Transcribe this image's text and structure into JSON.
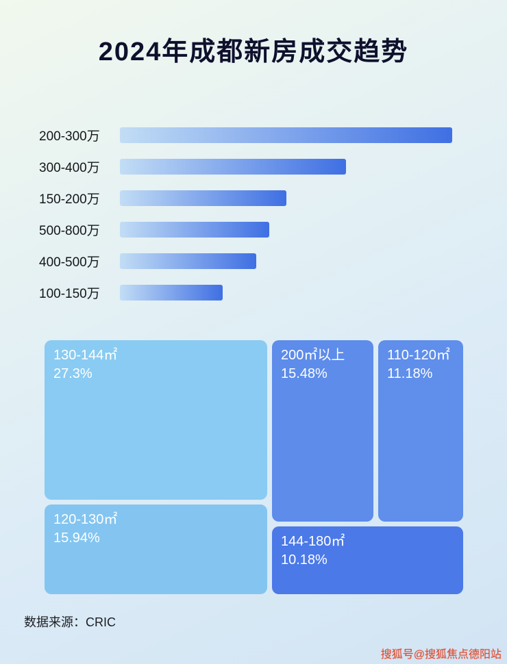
{
  "page": {
    "title": "2024年成都新房成交趋势"
  },
  "chart_data": [
    {
      "type": "bar",
      "orientation": "horizontal",
      "categories": [
        "200-300万",
        "300-400万",
        "150-200万",
        "500-800万",
        "400-500万",
        "100-150万"
      ],
      "values_relative_pct": [
        100,
        68,
        50,
        45,
        41,
        31
      ],
      "value_labels_shown": false,
      "bar_gradient": [
        "#c2ddf5",
        "#3f6fe3"
      ]
    },
    {
      "type": "treemap",
      "tiles": [
        {
          "label": "130-144㎡",
          "value_pct": 27.3,
          "display": "27.3%",
          "color": "#89cbf2"
        },
        {
          "label": "200㎡以上",
          "value_pct": 15.48,
          "display": "15.48%",
          "color": "#5d8cea"
        },
        {
          "label": "110-120㎡",
          "value_pct": 11.18,
          "display": "11.18%",
          "color": "#5f8eeb"
        },
        {
          "label": "120-130㎡",
          "value_pct": 15.94,
          "display": "15.94%",
          "color": "#83c5f0"
        },
        {
          "label": "144-180㎡",
          "value_pct": 10.18,
          "display": "10.18%",
          "color": "#4b79e8"
        }
      ]
    }
  ],
  "footer": {
    "source": "数据来源：CRIC",
    "watermark": "搜狐号@搜狐焦点德阳站"
  }
}
